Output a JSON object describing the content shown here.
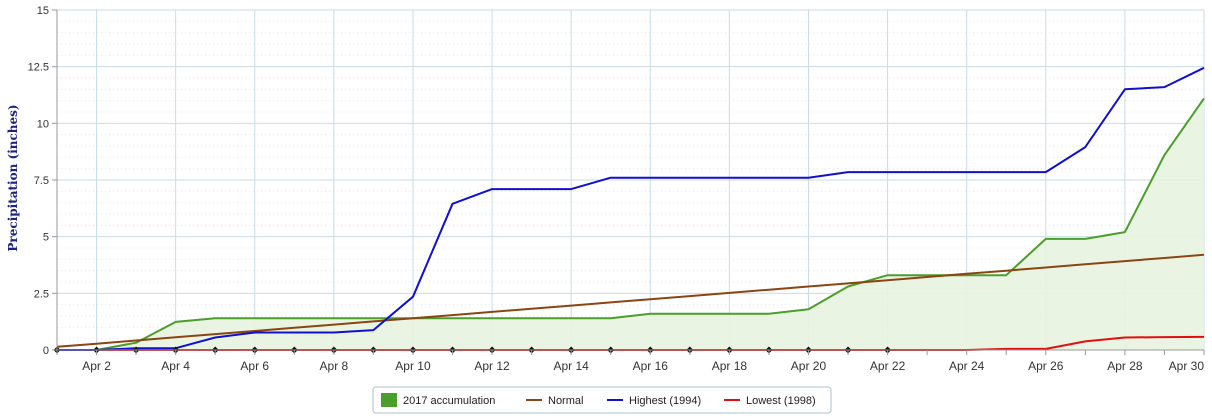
{
  "chart_data": {
    "type": "line",
    "title": "",
    "xlabel": "",
    "ylabel": "Precipitation (inches)",
    "x_start_day": 1,
    "x_end_day": 30,
    "x_tick_labels": [
      "Apr 2",
      "Apr 4",
      "Apr 6",
      "Apr 8",
      "Apr 10",
      "Apr 12",
      "Apr 14",
      "Apr 16",
      "Apr 18",
      "Apr 20",
      "Apr 22",
      "Apr 24",
      "Apr 26",
      "Apr 28",
      "Apr 30"
    ],
    "ylim": [
      0,
      15
    ],
    "y_ticks": [
      0,
      2.5,
      5,
      7.5,
      10,
      12.5,
      15
    ],
    "y_tick_labels": [
      "0",
      "2.5",
      "5",
      "7.5",
      "10",
      "12.5",
      "15"
    ],
    "grid": true,
    "legend_position": "bottom-center",
    "series": [
      {
        "name": "2017 accumulation",
        "kind": "area",
        "color": "#4a9e2a",
        "fill": "#e8f3e0",
        "values": [
          0,
          0,
          0.32,
          1.24,
          1.4,
          1.4,
          1.4,
          1.4,
          1.4,
          1.4,
          1.4,
          1.4,
          1.4,
          1.4,
          1.4,
          1.6,
          1.6,
          1.6,
          1.6,
          1.8,
          2.8,
          3.3,
          3.3,
          3.3,
          3.3,
          4.9,
          4.9,
          5.2,
          8.6,
          11.1
        ]
      },
      {
        "name": "Normal",
        "kind": "line",
        "color": "#8b4513",
        "values": [
          0.14,
          0.28,
          0.42,
          0.56,
          0.7,
          0.84,
          0.98,
          1.12,
          1.26,
          1.4,
          1.54,
          1.68,
          1.82,
          1.96,
          2.1,
          2.24,
          2.38,
          2.52,
          2.66,
          2.8,
          2.94,
          3.08,
          3.22,
          3.36,
          3.5,
          3.64,
          3.78,
          3.92,
          4.06,
          4.2
        ]
      },
      {
        "name": "Highest (1994)",
        "kind": "line",
        "color": "#1010d0",
        "values": [
          0,
          0,
          0.08,
          0.08,
          0.55,
          0.77,
          0.77,
          0.77,
          0.88,
          2.35,
          6.45,
          7.1,
          7.1,
          7.1,
          7.6,
          7.6,
          7.6,
          7.6,
          7.6,
          7.6,
          7.85,
          7.85,
          7.85,
          7.85,
          7.85,
          7.85,
          8.95,
          11.5,
          11.6,
          12.45
        ]
      },
      {
        "name": "Lowest (1998)",
        "kind": "line",
        "color": "#e01010",
        "values": [
          0,
          0,
          0,
          0,
          0,
          0,
          0,
          0,
          0,
          0,
          0,
          0,
          0,
          0,
          0,
          0,
          0,
          0,
          0,
          0,
          0,
          0,
          0,
          0,
          0.05,
          0.05,
          0.38,
          0.55,
          0.57,
          0.58
        ]
      }
    ],
    "marker_days": [
      1,
      2,
      3,
      4,
      5,
      6,
      7,
      8,
      9,
      10,
      11,
      12,
      13,
      14,
      15,
      16,
      17,
      18,
      19,
      20,
      21,
      22
    ]
  }
}
